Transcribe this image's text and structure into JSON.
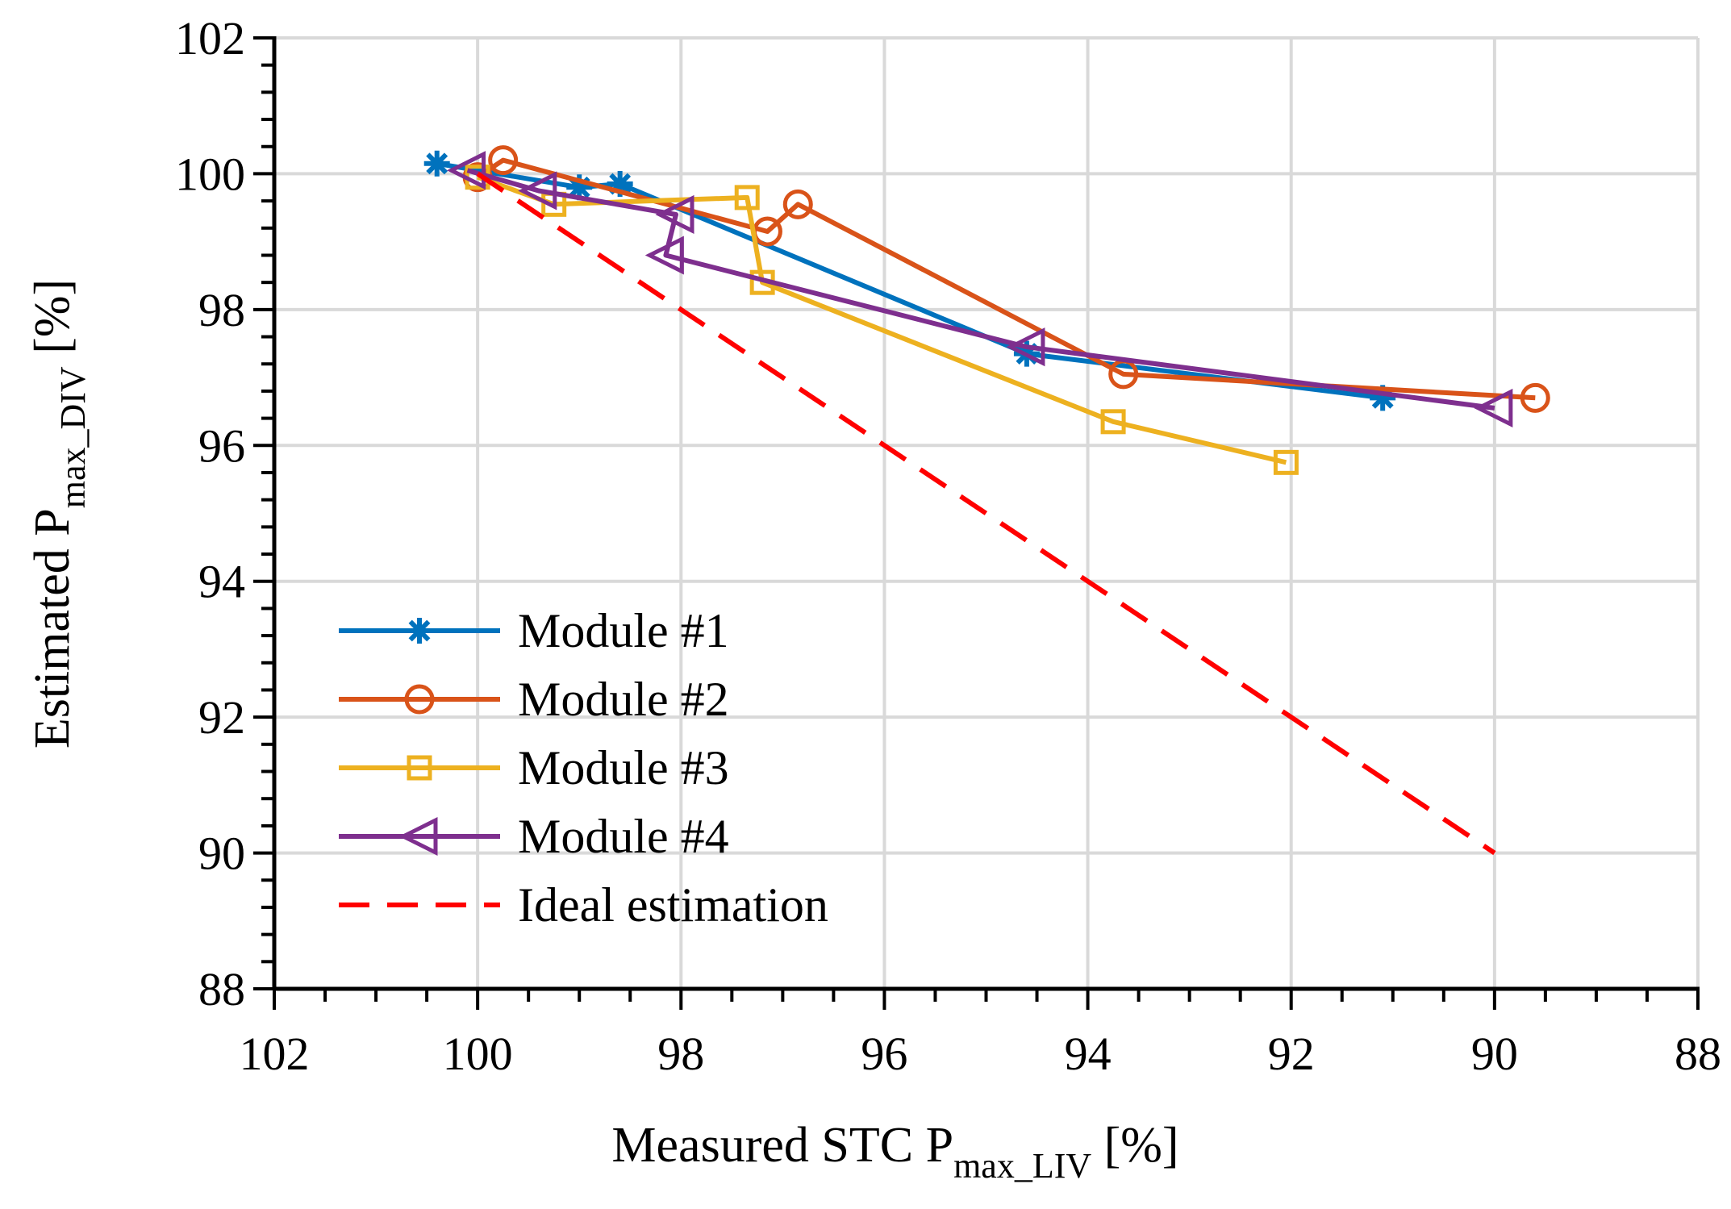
{
  "chart_data": {
    "type": "line",
    "xlabel": "Measured STC P",
    "xlabel_sub": "max_LIV",
    "xlabel_unit": " [%]",
    "ylabel": "Estimated P",
    "ylabel_sub": "max_DIV",
    "ylabel_unit": " [%]",
    "xlim": [
      102,
      88
    ],
    "ylim": [
      88,
      102
    ],
    "x_ticks": [
      102,
      100,
      98,
      96,
      94,
      92,
      90,
      88
    ],
    "y_ticks": [
      88,
      90,
      92,
      94,
      96,
      98,
      100,
      102
    ],
    "x_minor_step": 0.5,
    "y_minor_step": 0.4,
    "grid": true,
    "legend_position": "bottom-left",
    "series": [
      {
        "name": "Module #1",
        "color": "#0072BD",
        "marker": "asterisk",
        "x": [
          100.4,
          99.0,
          98.6,
          94.6,
          91.1
        ],
        "y": [
          100.15,
          99.8,
          99.85,
          97.35,
          96.7
        ]
      },
      {
        "name": "Module #2",
        "color": "#D95319",
        "marker": "circle",
        "x": [
          100.0,
          99.75,
          97.15,
          96.85,
          93.65,
          89.6
        ],
        "y": [
          99.95,
          100.2,
          99.15,
          99.55,
          97.05,
          96.7
        ]
      },
      {
        "name": "Module #3",
        "color": "#EDB120",
        "marker": "square",
        "x": [
          100.0,
          99.25,
          97.35,
          97.2,
          93.75,
          92.05
        ],
        "y": [
          99.95,
          99.55,
          99.65,
          98.4,
          96.35,
          95.75
        ]
      },
      {
        "name": "Module #4",
        "color": "#7E2F8E",
        "marker": "triangle-left",
        "x": [
          100.1,
          99.4,
          98.05,
          98.15,
          94.6,
          90.0
        ],
        "y": [
          100.05,
          99.75,
          99.4,
          98.8,
          97.45,
          96.55
        ]
      },
      {
        "name": "Ideal estimation",
        "color": "#FF0000",
        "marker": "none",
        "dashed": true,
        "x": [
          100,
          90
        ],
        "y": [
          100,
          90
        ]
      }
    ]
  }
}
